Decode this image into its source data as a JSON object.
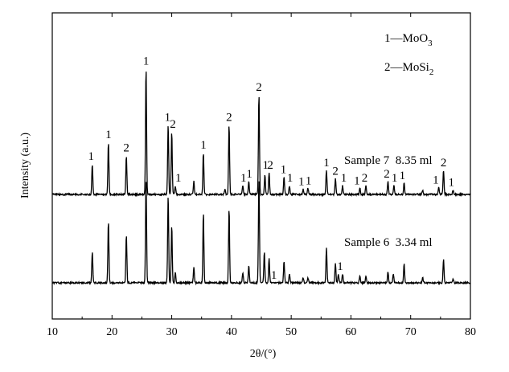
{
  "chart_data": {
    "type": "line",
    "xlabel": "2θ/(°)",
    "ylabel": "Intensity (a.u.)",
    "xlim": [
      10,
      80
    ],
    "x_ticks": [
      10,
      20,
      30,
      40,
      50,
      60,
      70,
      80
    ],
    "y_ticks_shown": false,
    "legend_position": "top-right",
    "legend": [
      {
        "id": "1",
        "text": "1—MoO",
        "sub": "3"
      },
      {
        "id": "2",
        "text": "2—MoSi",
        "sub": "2"
      }
    ],
    "series": [
      {
        "name": "Sample 7  8.35 ml",
        "baseline": 0,
        "peaks": [
          {
            "x": 16.7,
            "y": 3.5
          },
          {
            "x": 19.4,
            "y": 6.0
          },
          {
            "x": 22.4,
            "y": 4.5
          },
          {
            "x": 25.7,
            "y": 14.5
          },
          {
            "x": 29.4,
            "y": 8.0
          },
          {
            "x": 30.0,
            "y": 7.2
          },
          {
            "x": 30.6,
            "y": 1.0
          },
          {
            "x": 33.7,
            "y": 1.5
          },
          {
            "x": 35.3,
            "y": 4.8
          },
          {
            "x": 38.9,
            "y": 0.6
          },
          {
            "x": 39.6,
            "y": 8.0
          },
          {
            "x": 41.9,
            "y": 1.0
          },
          {
            "x": 42.9,
            "y": 1.5
          },
          {
            "x": 44.6,
            "y": 11.5
          },
          {
            "x": 45.6,
            "y": 2.3
          },
          {
            "x": 46.3,
            "y": 2.5
          },
          {
            "x": 48.8,
            "y": 2.0
          },
          {
            "x": 49.7,
            "y": 1.0
          },
          {
            "x": 52.0,
            "y": 0.6
          },
          {
            "x": 52.8,
            "y": 0.7
          },
          {
            "x": 55.9,
            "y": 2.8
          },
          {
            "x": 57.4,
            "y": 1.8
          },
          {
            "x": 58.6,
            "y": 1.0
          },
          {
            "x": 61.5,
            "y": 0.7
          },
          {
            "x": 62.5,
            "y": 1.0
          },
          {
            "x": 66.2,
            "y": 1.5
          },
          {
            "x": 67.2,
            "y": 1.0
          },
          {
            "x": 68.9,
            "y": 1.3
          },
          {
            "x": 72.0,
            "y": 0.5
          },
          {
            "x": 74.7,
            "y": 0.8
          },
          {
            "x": 75.5,
            "y": 2.8
          },
          {
            "x": 77.1,
            "y": 0.5
          }
        ],
        "labels": [
          {
            "x": 16.5,
            "text": "1"
          },
          {
            "x": 19.4,
            "text": "1"
          },
          {
            "x": 22.4,
            "text": "2"
          },
          {
            "x": 25.7,
            "text": "1"
          },
          {
            "x": 29.3,
            "text": "1"
          },
          {
            "x": 30.2,
            "text": "2"
          },
          {
            "x": 31.1,
            "text": "1"
          },
          {
            "x": 35.3,
            "text": "1"
          },
          {
            "x": 39.6,
            "text": "2"
          },
          {
            "x": 42.0,
            "text": "1"
          },
          {
            "x": 43.0,
            "text": "1"
          },
          {
            "x": 44.6,
            "text": "2"
          },
          {
            "x": 45.7,
            "text": "1"
          },
          {
            "x": 46.5,
            "text": "2"
          },
          {
            "x": 48.7,
            "text": "1"
          },
          {
            "x": 49.8,
            "text": "1"
          },
          {
            "x": 51.7,
            "text": "1"
          },
          {
            "x": 52.9,
            "text": "1"
          },
          {
            "x": 55.9,
            "text": "1"
          },
          {
            "x": 57.4,
            "text": "2"
          },
          {
            "x": 58.8,
            "text": "1"
          },
          {
            "x": 61.0,
            "text": "1"
          },
          {
            "x": 62.3,
            "text": "2"
          },
          {
            "x": 66.0,
            "text": "2"
          },
          {
            "x": 67.3,
            "text": "1"
          },
          {
            "x": 68.6,
            "text": "1"
          },
          {
            "x": 74.2,
            "text": "1"
          },
          {
            "x": 75.5,
            "text": "2"
          },
          {
            "x": 76.8,
            "text": "1"
          }
        ]
      },
      {
        "name": "Sample 6  3.34 ml",
        "baseline": 0,
        "peaks": [
          {
            "x": 16.7,
            "y": 3.5
          },
          {
            "x": 19.4,
            "y": 7.0
          },
          {
            "x": 22.4,
            "y": 5.5
          },
          {
            "x": 25.7,
            "y": 12.0
          },
          {
            "x": 29.4,
            "y": 10.0
          },
          {
            "x": 30.0,
            "y": 6.5
          },
          {
            "x": 30.6,
            "y": 1.2
          },
          {
            "x": 33.7,
            "y": 1.8
          },
          {
            "x": 35.3,
            "y": 8.0
          },
          {
            "x": 39.6,
            "y": 8.5
          },
          {
            "x": 41.9,
            "y": 1.2
          },
          {
            "x": 42.9,
            "y": 2.0
          },
          {
            "x": 44.6,
            "y": 12.0
          },
          {
            "x": 45.5,
            "y": 3.5
          },
          {
            "x": 46.3,
            "y": 2.8
          },
          {
            "x": 48.8,
            "y": 2.5
          },
          {
            "x": 49.7,
            "y": 1.0
          },
          {
            "x": 52.0,
            "y": 0.6
          },
          {
            "x": 52.8,
            "y": 0.6
          },
          {
            "x": 55.9,
            "y": 4.0
          },
          {
            "x": 57.4,
            "y": 2.2
          },
          {
            "x": 57.9,
            "y": 1.0
          },
          {
            "x": 58.6,
            "y": 1.0
          },
          {
            "x": 61.5,
            "y": 0.8
          },
          {
            "x": 62.5,
            "y": 0.8
          },
          {
            "x": 66.2,
            "y": 1.3
          },
          {
            "x": 67.1,
            "y": 1.0
          },
          {
            "x": 68.9,
            "y": 2.2
          },
          {
            "x": 72.0,
            "y": 0.6
          },
          {
            "x": 75.5,
            "y": 2.7
          },
          {
            "x": 77.1,
            "y": 0.5
          }
        ],
        "labels": [
          {
            "x": 47.1,
            "text": "1"
          },
          {
            "x": 58.2,
            "text": "1"
          }
        ]
      }
    ]
  }
}
